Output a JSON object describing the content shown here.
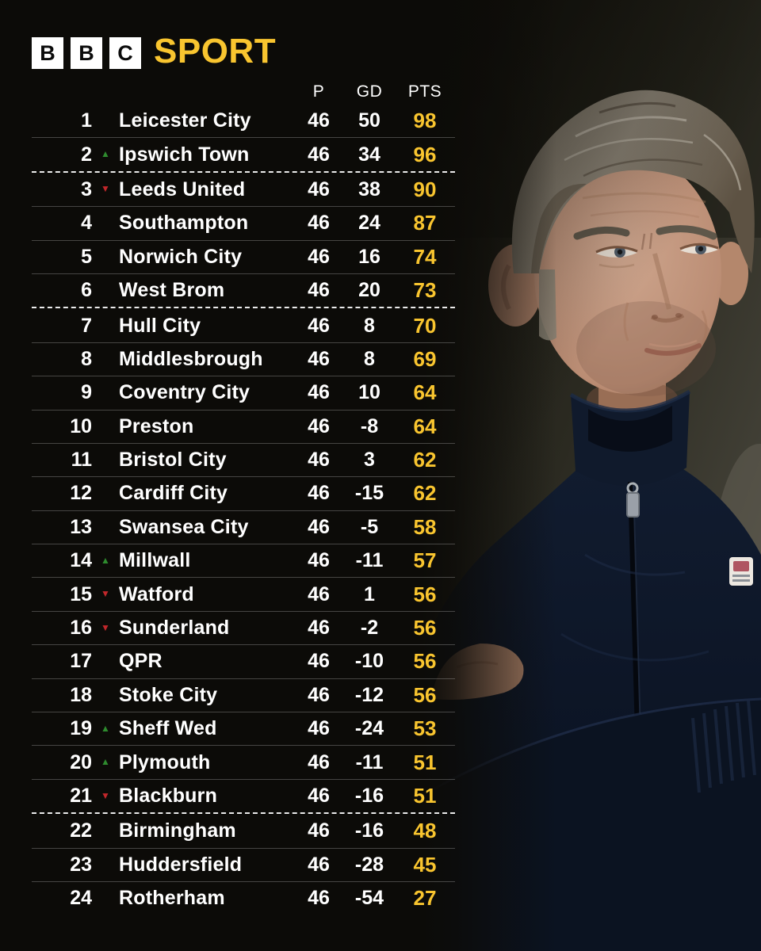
{
  "brand": {
    "bbc_letters": [
      "B",
      "B",
      "C"
    ],
    "wordmark": "SPORT"
  },
  "icons": {
    "up_arrow": "▲",
    "down_arrow": "▼"
  },
  "colors": {
    "accent_yellow": "#f9c52f",
    "up_green": "#2e8b2e",
    "down_red": "#c3272b",
    "background": "#0c0b08",
    "text": "#ffffff"
  },
  "chart_data": {
    "type": "table",
    "title": "BBC SPORT",
    "headers": {
      "played": "P",
      "goal_difference": "GD",
      "points": "PTS"
    },
    "zone_divider_dashed_after_positions": [
      2,
      6,
      21
    ],
    "rows": [
      {
        "pos": "1",
        "movement": "none",
        "team": "Leicester City",
        "played": "46",
        "gd": "50",
        "pts": "98",
        "divider": "solid"
      },
      {
        "pos": "2",
        "movement": "up",
        "team": "Ipswich Town",
        "played": "46",
        "gd": "34",
        "pts": "96",
        "divider": "dashed"
      },
      {
        "pos": "3",
        "movement": "down",
        "team": "Leeds United",
        "played": "46",
        "gd": "38",
        "pts": "90",
        "divider": "solid"
      },
      {
        "pos": "4",
        "movement": "none",
        "team": "Southampton",
        "played": "46",
        "gd": "24",
        "pts": "87",
        "divider": "solid"
      },
      {
        "pos": "5",
        "movement": "none",
        "team": "Norwich City",
        "played": "46",
        "gd": "16",
        "pts": "74",
        "divider": "solid"
      },
      {
        "pos": "6",
        "movement": "none",
        "team": "West Brom",
        "played": "46",
        "gd": "20",
        "pts": "73",
        "divider": "dashed"
      },
      {
        "pos": "7",
        "movement": "none",
        "team": "Hull City",
        "played": "46",
        "gd": "8",
        "pts": "70",
        "divider": "solid"
      },
      {
        "pos": "8",
        "movement": "none",
        "team": "Middlesbrough",
        "played": "46",
        "gd": "8",
        "pts": "69",
        "divider": "solid"
      },
      {
        "pos": "9",
        "movement": "none",
        "team": "Coventry City",
        "played": "46",
        "gd": "10",
        "pts": "64",
        "divider": "solid"
      },
      {
        "pos": "10",
        "movement": "none",
        "team": "Preston",
        "played": "46",
        "gd": "-8",
        "pts": "64",
        "divider": "solid"
      },
      {
        "pos": "11",
        "movement": "none",
        "team": "Bristol City",
        "played": "46",
        "gd": "3",
        "pts": "62",
        "divider": "solid"
      },
      {
        "pos": "12",
        "movement": "none",
        "team": "Cardiff City",
        "played": "46",
        "gd": "-15",
        "pts": "62",
        "divider": "solid"
      },
      {
        "pos": "13",
        "movement": "none",
        "team": "Swansea City",
        "played": "46",
        "gd": "-5",
        "pts": "58",
        "divider": "solid"
      },
      {
        "pos": "14",
        "movement": "up",
        "team": "Millwall",
        "played": "46",
        "gd": "-11",
        "pts": "57",
        "divider": "solid"
      },
      {
        "pos": "15",
        "movement": "down",
        "team": "Watford",
        "played": "46",
        "gd": "1",
        "pts": "56",
        "divider": "solid"
      },
      {
        "pos": "16",
        "movement": "down",
        "team": "Sunderland",
        "played": "46",
        "gd": "-2",
        "pts": "56",
        "divider": "solid"
      },
      {
        "pos": "17",
        "movement": "none",
        "team": "QPR",
        "played": "46",
        "gd": "-10",
        "pts": "56",
        "divider": "solid"
      },
      {
        "pos": "18",
        "movement": "none",
        "team": "Stoke City",
        "played": "46",
        "gd": "-12",
        "pts": "56",
        "divider": "solid"
      },
      {
        "pos": "19",
        "movement": "up",
        "team": "Sheff Wed",
        "played": "46",
        "gd": "-24",
        "pts": "53",
        "divider": "solid"
      },
      {
        "pos": "20",
        "movement": "up",
        "team": "Plymouth",
        "played": "46",
        "gd": "-11",
        "pts": "51",
        "divider": "solid"
      },
      {
        "pos": "21",
        "movement": "down",
        "team": "Blackburn",
        "played": "46",
        "gd": "-16",
        "pts": "51",
        "divider": "dashed"
      },
      {
        "pos": "22",
        "movement": "none",
        "team": "Birmingham",
        "played": "46",
        "gd": "-16",
        "pts": "48",
        "divider": "solid"
      },
      {
        "pos": "23",
        "movement": "none",
        "team": "Huddersfield",
        "played": "46",
        "gd": "-28",
        "pts": "45",
        "divider": "solid"
      },
      {
        "pos": "24",
        "movement": "none",
        "team": "Rotherham",
        "played": "46",
        "gd": "-54",
        "pts": "27",
        "divider": "none"
      }
    ]
  }
}
